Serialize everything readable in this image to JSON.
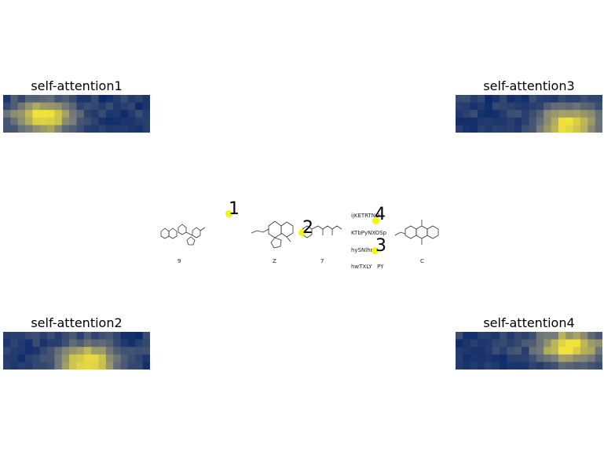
{
  "panels": [
    {
      "title": "self-attention1",
      "hot_col": 2,
      "hot_row": 1
    },
    {
      "title": "self-attention2",
      "hot_col": 5,
      "hot_row": 2
    },
    {
      "title": "self-attention3",
      "hot_col": 7,
      "hot_row": 2
    },
    {
      "title": "self-attention4",
      "hot_col": 7,
      "hot_row": 0
    }
  ],
  "strip": {
    "captions": [
      "9",
      "Z",
      "7",
      "C"
    ],
    "text_tile": [
      "ijKETRTNO",
      "KTbPyNXOSp",
      "hySNlhnV",
      "hwTXLY   PY"
    ]
  },
  "keypoints": [
    {
      "label": "1"
    },
    {
      "label": "2"
    },
    {
      "label": "3"
    },
    {
      "label": "4"
    }
  ],
  "colors": {
    "heat_low": "#0d2a6b",
    "heat_mid": "#7b7f7a",
    "heat_high": "#f2e33a",
    "dot": "#f5f50a"
  }
}
